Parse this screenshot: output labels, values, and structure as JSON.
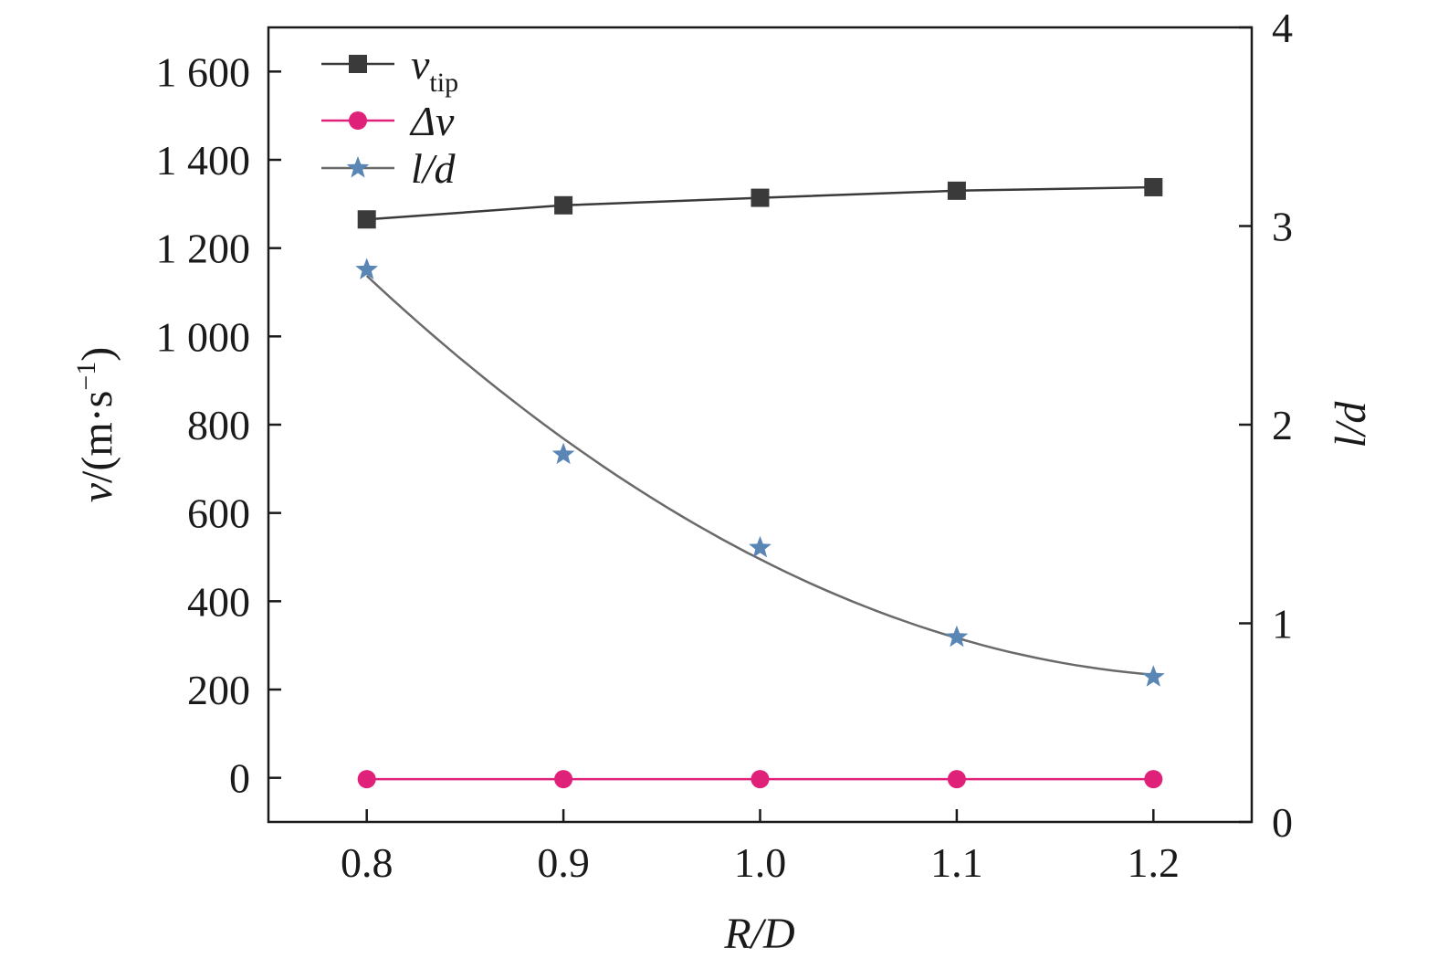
{
  "chart_data": {
    "type": "line",
    "x": [
      0.8,
      0.9,
      1.0,
      1.1,
      1.2
    ],
    "x_tick_labels": [
      "0.8",
      "0.9",
      "1.0",
      "1.1",
      "1.2"
    ],
    "xlim": [
      0.75,
      1.25
    ],
    "xlabel": "R/D",
    "ylabel_left": {
      "var": "v",
      "unit_open": "/(m·s",
      "unit_exp": "−1",
      "unit_close": ")"
    },
    "ylim_left": [
      -100,
      1700
    ],
    "y_ticks_left": [
      0,
      200,
      400,
      600,
      800,
      1000,
      1200,
      1400,
      1600
    ],
    "y_tick_labels_left": [
      "0",
      "200",
      "400",
      "600",
      "800",
      "1 000",
      "1 200",
      "1 400",
      "1 600"
    ],
    "ylabel_right": "l/d",
    "ylim_right": [
      0,
      4
    ],
    "y_ticks_right": [
      0,
      1,
      2,
      3,
      4
    ],
    "y_tick_labels_right": [
      "0",
      "1",
      "2",
      "3",
      "4"
    ],
    "legend_position": "top-left",
    "series": [
      {
        "name": "v",
        "name_sub": "tip",
        "axis": "left",
        "marker": "square",
        "color": "#3a3a3a",
        "values": [
          1265,
          1297,
          1314,
          1330,
          1338
        ]
      },
      {
        "name": "Δv",
        "axis": "left",
        "marker": "circle",
        "color": "#e0217a",
        "values": [
          -3,
          -3,
          -3,
          -3,
          -3
        ]
      },
      {
        "name": "l/d",
        "axis": "right",
        "marker": "star",
        "color": "#5a86b6",
        "line_color": "#6a6a6a",
        "fit": "smooth",
        "values": [
          2.78,
          1.85,
          1.38,
          0.93,
          0.73
        ]
      }
    ]
  }
}
